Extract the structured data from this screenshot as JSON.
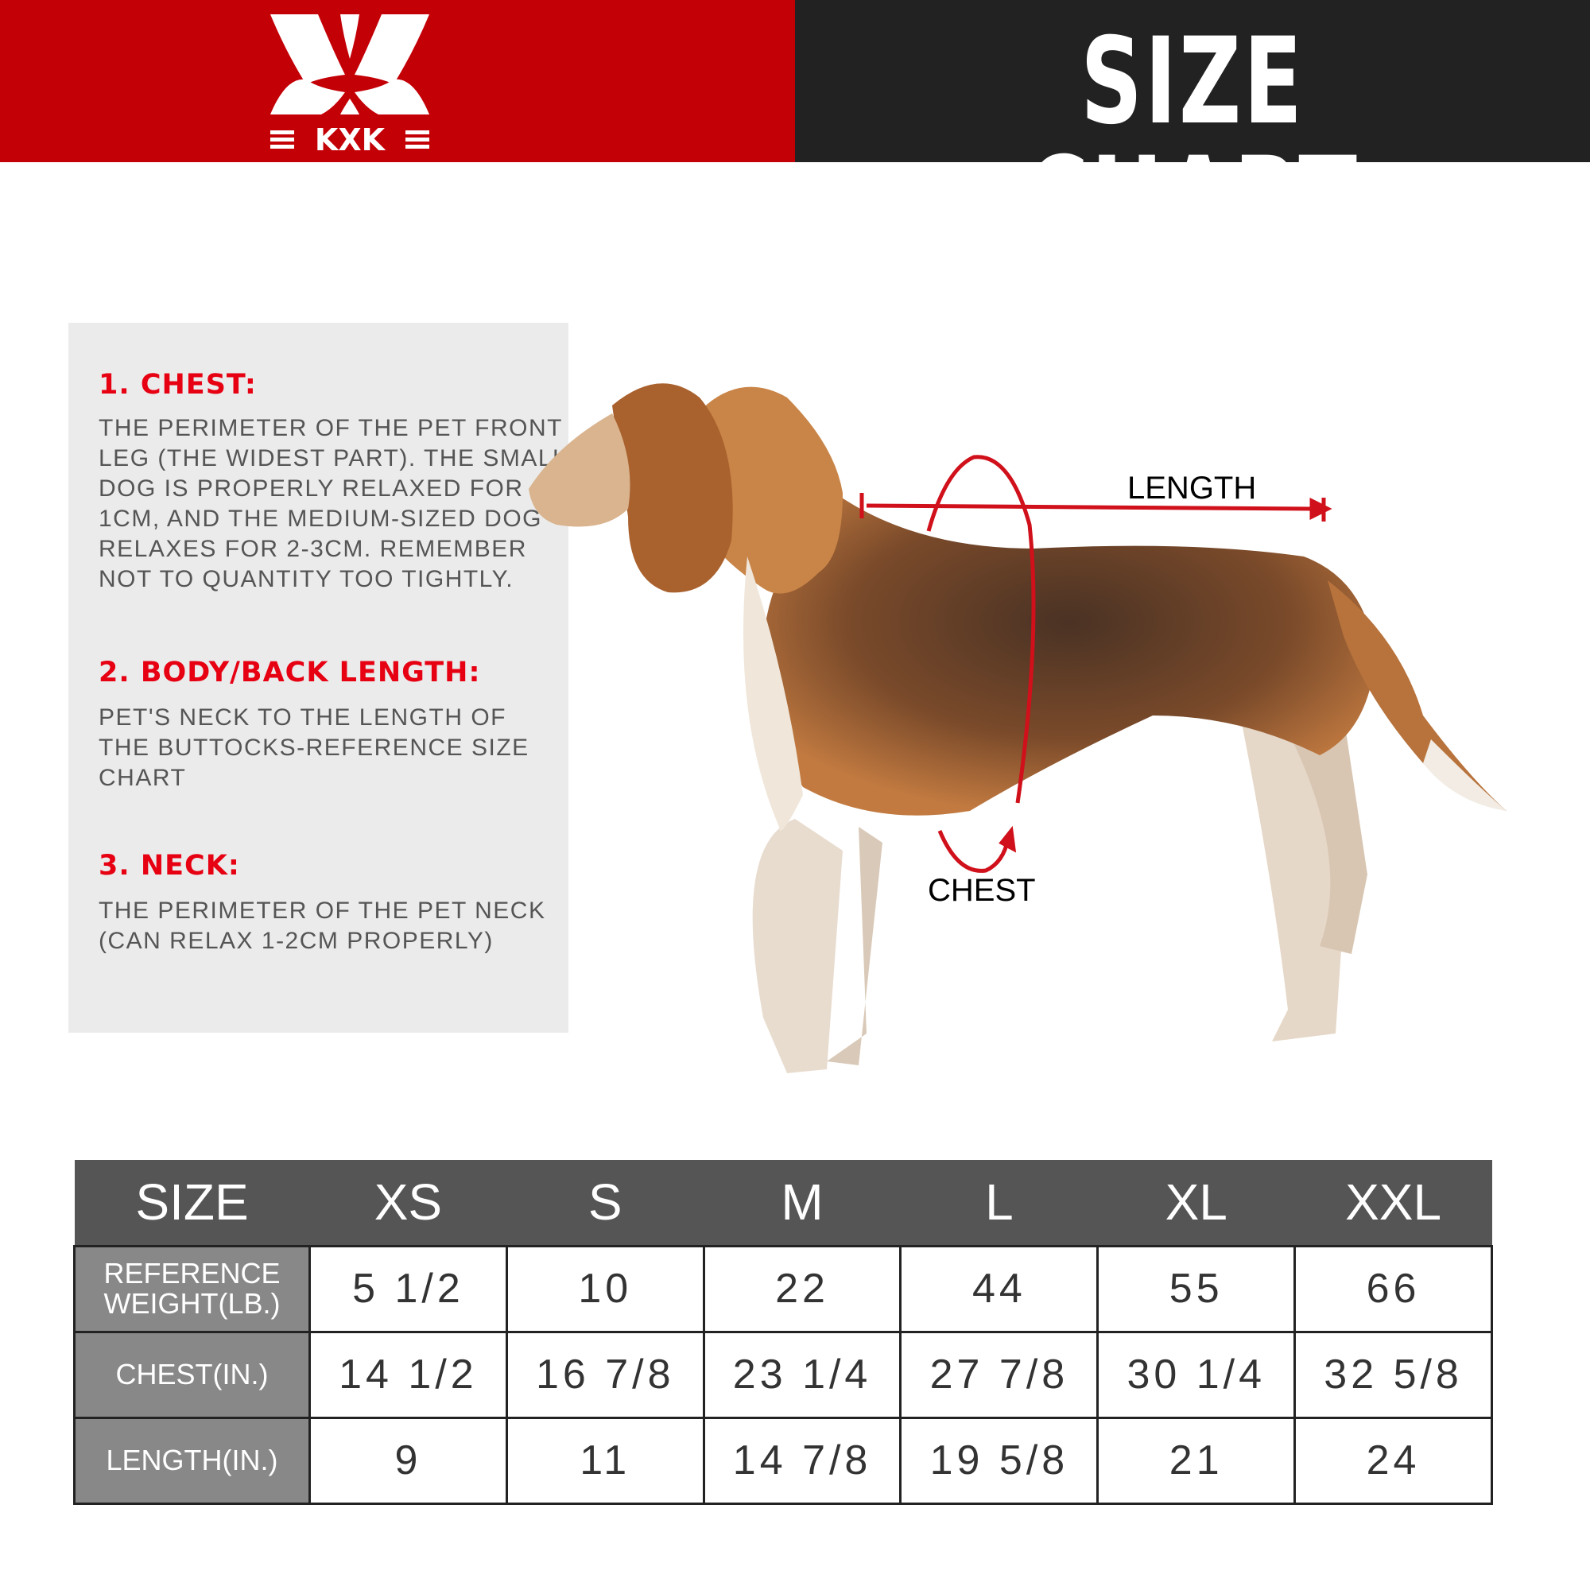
{
  "brand": {
    "logo_text": "KXK",
    "colors": {
      "red": "#c40007",
      "dark": "#222222"
    }
  },
  "header": {
    "title": "SIZE CHART"
  },
  "guide": [
    {
      "heading": "1. CHEST:",
      "text": "THE PERIMETER OF THE PET FRONT\nLEG (THE WIDEST PART). THE SMALL\nDOG IS PROPERLY RELAXED FOR\n1CM, AND THE MEDIUM-SIZED DOG\nRELAXES FOR 2-3CM. REMEMBER\nNOT TO QUANTITY TOO TIGHTLY."
    },
    {
      "heading": "2. BODY/BACK LENGTH:",
      "text": "PET'S NECK TO THE LENGTH OF\nTHE BUTTOCKS-REFERENCE SIZE\nCHART"
    },
    {
      "heading": "3. NECK:",
      "text": "THE PERIMETER OF THE PET NECK\n (CAN RELAX 1-2CM PROPERLY)"
    }
  ],
  "diagram": {
    "length_label": "LENGTH",
    "chest_label": "CHEST"
  },
  "table": {
    "headers": [
      "SIZE",
      "XS",
      "S",
      "M",
      "L",
      "XL",
      "XXL"
    ],
    "rows": [
      {
        "label": "REFERENCE WEIGHT(LB.)",
        "values": [
          "5 1/2",
          "10",
          "22",
          "44",
          "55",
          "66"
        ]
      },
      {
        "label": "CHEST(IN.)",
        "values": [
          "14 1/2",
          "16 7/8",
          "23 1/4",
          "27 7/8",
          "30 1/4",
          "32 5/8"
        ]
      },
      {
        "label": "LENGTH(IN.)",
        "values": [
          "9",
          "11",
          "14 7/8",
          "19 5/8",
          "21",
          "24"
        ]
      }
    ]
  }
}
